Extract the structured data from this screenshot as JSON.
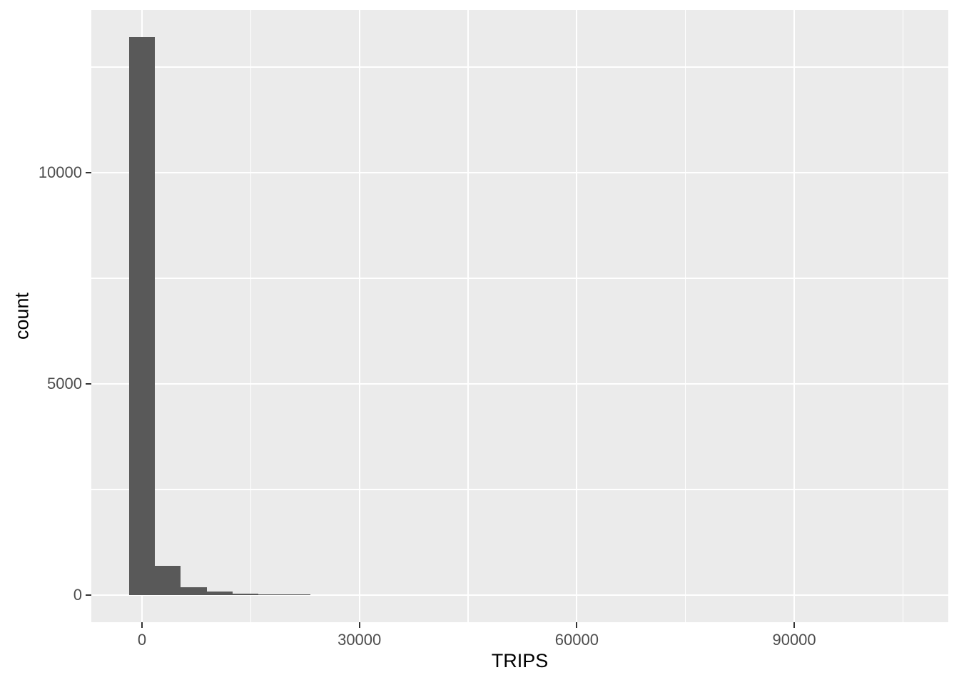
{
  "chart_data": {
    "type": "bar",
    "subtype": "histogram",
    "title": "",
    "xlabel": "TRIPS",
    "ylabel": "count",
    "x_ticks": [
      0,
      30000,
      60000,
      90000
    ],
    "x_tick_labels": [
      "0",
      "30000",
      "60000",
      "90000"
    ],
    "y_ticks": [
      0,
      5000,
      10000
    ],
    "y_tick_labels": [
      "0",
      "5000",
      "10000"
    ],
    "x_minor_gridlines": [
      15000,
      45000,
      75000,
      105000
    ],
    "y_minor_gridlines": [
      2500,
      7500,
      12500
    ],
    "x_range": [
      -6990,
      111260
    ],
    "y_range": [
      -640,
      13850
    ],
    "grid": true,
    "legend": "none",
    "binwidth": 3575,
    "bins": [
      {
        "center": 0,
        "count": 13200
      },
      {
        "center": 3575,
        "count": 690
      },
      {
        "center": 7150,
        "count": 186
      },
      {
        "center": 10725,
        "count": 84
      },
      {
        "center": 14300,
        "count": 34
      },
      {
        "center": 17875,
        "count": 25
      },
      {
        "center": 21450,
        "count": 18
      }
    ],
    "colors": {
      "bar_fill": "#595959",
      "panel_background": "#EBEBEB",
      "gridline": "#FFFFFF",
      "tick_label": "#4D4D4D",
      "axis_title": "#000000",
      "tick_mark": "#333333",
      "outer_background": "#FFFFFF"
    }
  }
}
